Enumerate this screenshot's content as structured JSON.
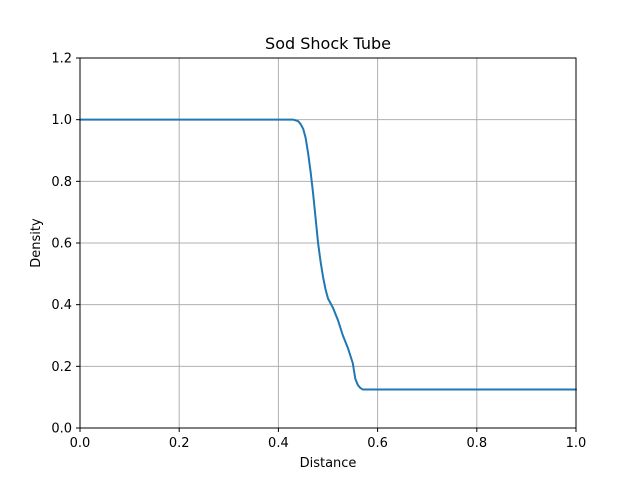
{
  "chart_data": {
    "type": "line",
    "title": "Sod Shock Tube",
    "xlabel": "Distance",
    "ylabel": "Density",
    "xlim": [
      0.0,
      1.0
    ],
    "ylim": [
      0.0,
      1.2
    ],
    "xticks": [
      0.0,
      0.2,
      0.4,
      0.6,
      0.8,
      1.0
    ],
    "xtick_labels": [
      "0.0",
      "0.2",
      "0.4",
      "0.6",
      "0.8",
      "1.0"
    ],
    "yticks": [
      0.0,
      0.2,
      0.4,
      0.6,
      0.8,
      1.0,
      1.2
    ],
    "ytick_labels": [
      "0.0",
      "0.2",
      "0.4",
      "0.6",
      "0.8",
      "1.0",
      "1.2"
    ],
    "grid": true,
    "series": [
      {
        "color": "#1f77b4",
        "x": [
          0.0,
          0.1,
          0.2,
          0.3,
          0.4,
          0.43,
          0.44,
          0.445,
          0.45,
          0.455,
          0.46,
          0.465,
          0.47,
          0.475,
          0.48,
          0.485,
          0.49,
          0.495,
          0.5,
          0.51,
          0.52,
          0.53,
          0.54,
          0.55,
          0.555,
          0.56,
          0.565,
          0.57,
          0.575,
          0.58,
          0.6,
          0.7,
          0.8,
          0.9,
          1.0
        ],
        "y": [
          1.0,
          1.0,
          1.0,
          1.0,
          1.0,
          1.0,
          0.995,
          0.985,
          0.97,
          0.94,
          0.89,
          0.83,
          0.76,
          0.68,
          0.6,
          0.54,
          0.49,
          0.45,
          0.42,
          0.39,
          0.35,
          0.3,
          0.26,
          0.21,
          0.16,
          0.14,
          0.13,
          0.125,
          0.125,
          0.125,
          0.125,
          0.125,
          0.125,
          0.125,
          0.125
        ]
      }
    ]
  }
}
